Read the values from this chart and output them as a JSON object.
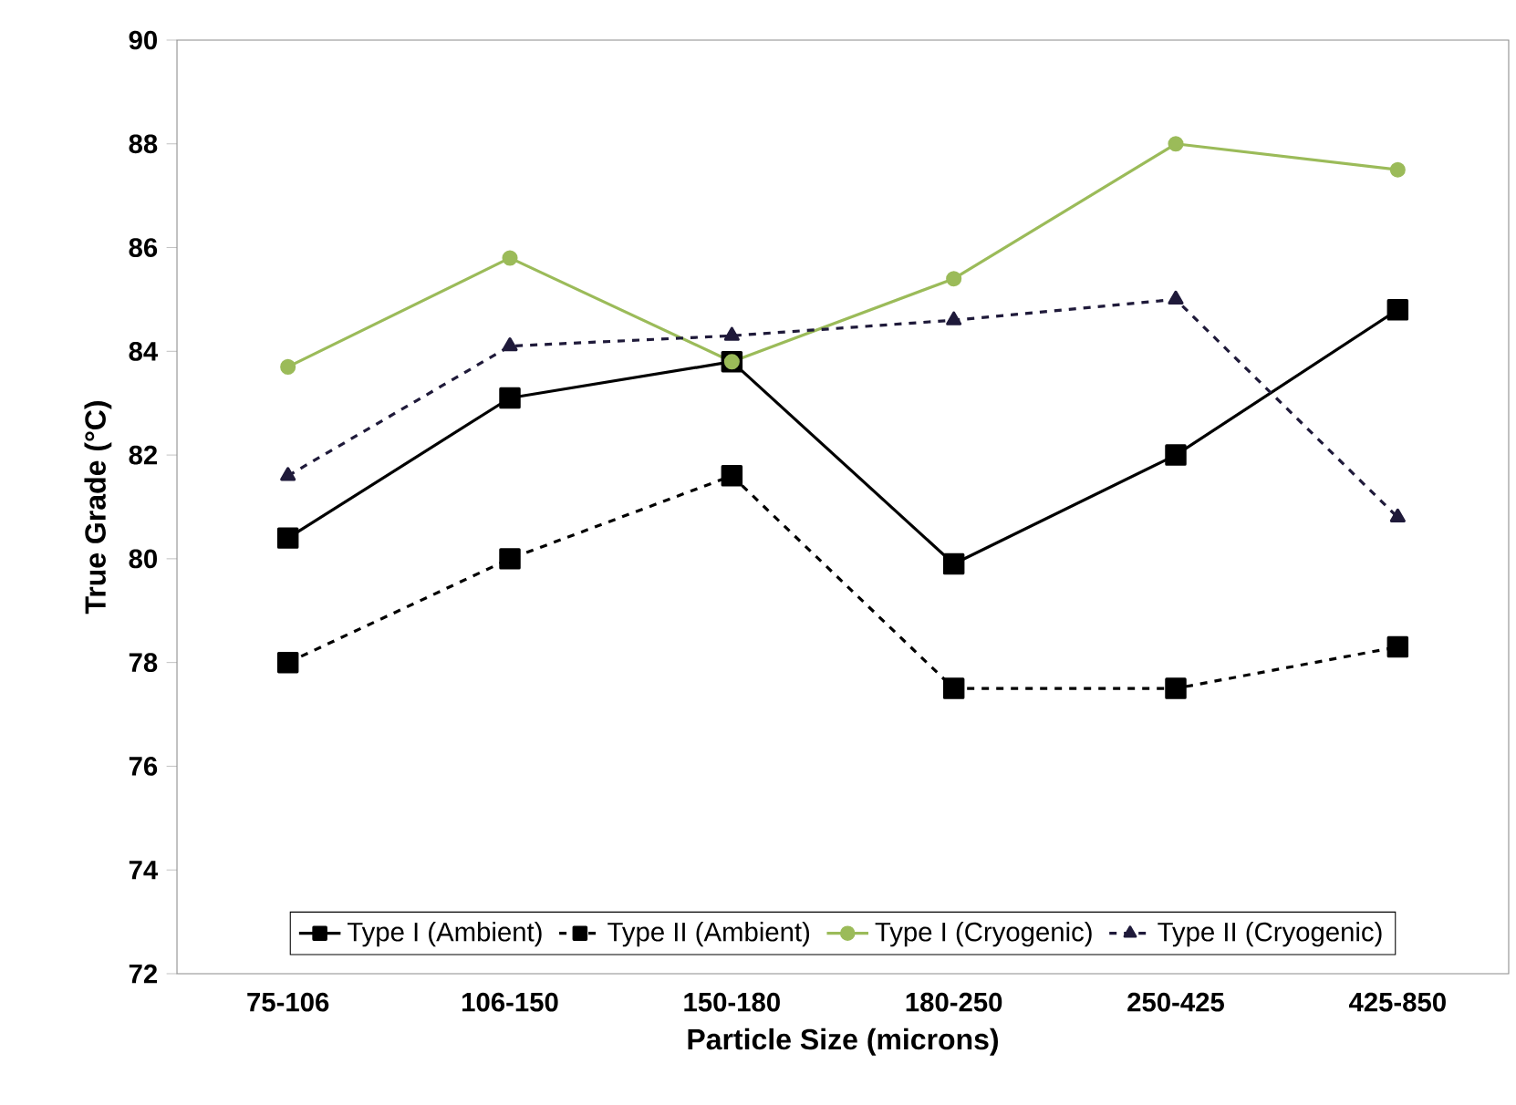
{
  "chart_data": {
    "type": "line",
    "xlabel": "Particle Size (microns)",
    "ylabel": "True Grade (°C)",
    "categories": [
      "75-106",
      "106-150",
      "150-180",
      "180-250",
      "250-425",
      "425-850"
    ],
    "ylim": [
      72,
      90
    ],
    "yticks": [
      72,
      74,
      76,
      78,
      80,
      82,
      84,
      86,
      88,
      90
    ],
    "legend": "bottom",
    "grid": false,
    "series": [
      {
        "name": "Type I (Ambient)",
        "color": "#000000",
        "marker": "square",
        "line_style": "solid",
        "values": [
          80.4,
          83.1,
          83.8,
          79.9,
          82.0,
          84.8
        ]
      },
      {
        "name": "Type II (Ambient)",
        "color": "#000000",
        "marker": "square",
        "line_style": "dashed",
        "values": [
          78.0,
          80.0,
          81.6,
          77.5,
          77.5,
          78.3
        ]
      },
      {
        "name": "Type I (Cryogenic)",
        "color": "#9bbb59",
        "marker": "circle",
        "line_style": "solid",
        "values": [
          83.7,
          85.8,
          83.8,
          85.4,
          88.0,
          87.5
        ]
      },
      {
        "name": "Type II (Cryogenic)",
        "color": "#1f1a3a",
        "marker": "triangle",
        "line_style": "dashed",
        "values": [
          81.6,
          84.1,
          84.3,
          84.6,
          85.0,
          80.8
        ]
      }
    ]
  }
}
